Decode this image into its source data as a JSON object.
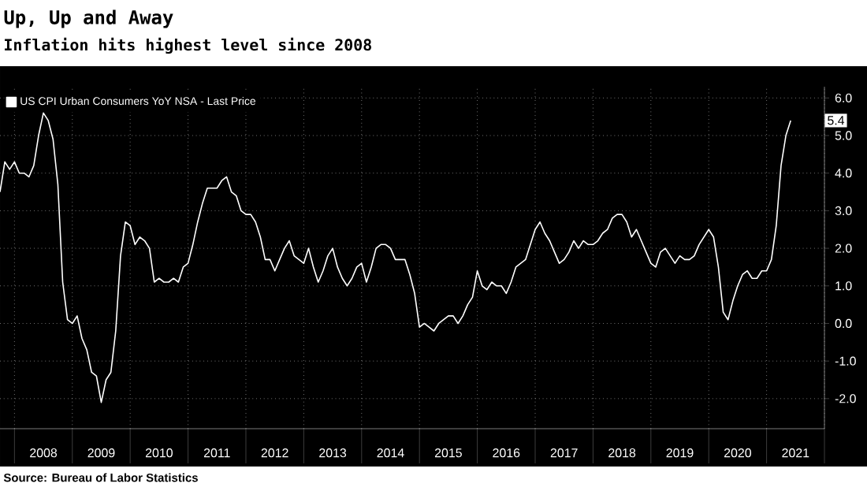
{
  "chart_data": {
    "type": "line",
    "title": "Up, Up and Away",
    "subtitle": "Inflation hits highest level since 2008",
    "x": [
      "2007-10",
      "2007-11",
      "2007-12",
      "2008-01",
      "2008-02",
      "2008-03",
      "2008-04",
      "2008-05",
      "2008-06",
      "2008-07",
      "2008-08",
      "2008-09",
      "2008-10",
      "2008-11",
      "2008-12",
      "2009-01",
      "2009-02",
      "2009-03",
      "2009-04",
      "2009-05",
      "2009-06",
      "2009-07",
      "2009-08",
      "2009-09",
      "2009-10",
      "2009-11",
      "2009-12",
      "2010-01",
      "2010-02",
      "2010-03",
      "2010-04",
      "2010-05",
      "2010-06",
      "2010-07",
      "2010-08",
      "2010-09",
      "2010-10",
      "2010-11",
      "2010-12",
      "2011-01",
      "2011-02",
      "2011-03",
      "2011-04",
      "2011-05",
      "2011-06",
      "2011-07",
      "2011-08",
      "2011-09",
      "2011-10",
      "2011-11",
      "2011-12",
      "2012-01",
      "2012-02",
      "2012-03",
      "2012-04",
      "2012-05",
      "2012-06",
      "2012-07",
      "2012-08",
      "2012-09",
      "2012-10",
      "2012-11",
      "2012-12",
      "2013-01",
      "2013-02",
      "2013-03",
      "2013-04",
      "2013-05",
      "2013-06",
      "2013-07",
      "2013-08",
      "2013-09",
      "2013-10",
      "2013-11",
      "2013-12",
      "2014-01",
      "2014-02",
      "2014-03",
      "2014-04",
      "2014-05",
      "2014-06",
      "2014-07",
      "2014-08",
      "2014-09",
      "2014-10",
      "2014-11",
      "2014-12",
      "2015-01",
      "2015-02",
      "2015-03",
      "2015-04",
      "2015-05",
      "2015-06",
      "2015-07",
      "2015-08",
      "2015-09",
      "2015-10",
      "2015-11",
      "2015-12",
      "2016-01",
      "2016-02",
      "2016-03",
      "2016-04",
      "2016-05",
      "2016-06",
      "2016-07",
      "2016-08",
      "2016-09",
      "2016-10",
      "2016-11",
      "2016-12",
      "2017-01",
      "2017-02",
      "2017-03",
      "2017-04",
      "2017-05",
      "2017-06",
      "2017-07",
      "2017-08",
      "2017-09",
      "2017-10",
      "2017-11",
      "2017-12",
      "2018-01",
      "2018-02",
      "2018-03",
      "2018-04",
      "2018-05",
      "2018-06",
      "2018-07",
      "2018-08",
      "2018-09",
      "2018-10",
      "2018-11",
      "2018-12",
      "2019-01",
      "2019-02",
      "2019-03",
      "2019-04",
      "2019-05",
      "2019-06",
      "2019-07",
      "2019-08",
      "2019-09",
      "2019-10",
      "2019-11",
      "2019-12",
      "2020-01",
      "2020-02",
      "2020-03",
      "2020-04",
      "2020-05",
      "2020-06",
      "2020-07",
      "2020-08",
      "2020-09",
      "2020-10",
      "2020-11",
      "2020-12",
      "2021-01",
      "2021-02",
      "2021-03",
      "2021-04",
      "2021-05",
      "2021-06"
    ],
    "series": [
      {
        "name": "US CPI Urban Consumers YoY NSA - Last Price",
        "color": "#ffffff",
        "values": [
          3.5,
          4.3,
          4.1,
          4.3,
          4.0,
          4.0,
          3.9,
          4.2,
          5.0,
          5.6,
          5.4,
          4.9,
          3.7,
          1.1,
          0.1,
          0.0,
          0.2,
          -0.4,
          -0.7,
          -1.3,
          -1.4,
          -2.1,
          -1.5,
          -1.3,
          -0.2,
          1.8,
          2.7,
          2.6,
          2.1,
          2.3,
          2.2,
          2.0,
          1.1,
          1.2,
          1.1,
          1.1,
          1.2,
          1.1,
          1.5,
          1.6,
          2.1,
          2.7,
          3.2,
          3.6,
          3.6,
          3.6,
          3.8,
          3.9,
          3.5,
          3.4,
          3.0,
          2.9,
          2.9,
          2.7,
          2.3,
          1.7,
          1.7,
          1.4,
          1.7,
          2.0,
          2.2,
          1.8,
          1.7,
          1.6,
          2.0,
          1.5,
          1.1,
          1.4,
          1.8,
          2.0,
          1.5,
          1.2,
          1.0,
          1.2,
          1.5,
          1.6,
          1.1,
          1.5,
          2.0,
          2.1,
          2.1,
          2.0,
          1.7,
          1.7,
          1.7,
          1.3,
          0.8,
          -0.1,
          0.0,
          -0.1,
          -0.2,
          0.0,
          0.1,
          0.2,
          0.2,
          0.0,
          0.2,
          0.5,
          0.7,
          1.4,
          1.0,
          0.9,
          1.1,
          1.0,
          1.0,
          0.8,
          1.1,
          1.5,
          1.6,
          1.7,
          2.1,
          2.5,
          2.7,
          2.4,
          2.2,
          1.9,
          1.6,
          1.7,
          1.9,
          2.2,
          2.0,
          2.2,
          2.1,
          2.1,
          2.2,
          2.4,
          2.5,
          2.8,
          2.9,
          2.9,
          2.7,
          2.3,
          2.5,
          2.2,
          1.9,
          1.6,
          1.5,
          1.9,
          2.0,
          1.8,
          1.6,
          1.8,
          1.7,
          1.7,
          1.8,
          2.1,
          2.3,
          2.5,
          2.3,
          1.5,
          0.3,
          0.1,
          0.6,
          1.0,
          1.3,
          1.4,
          1.2,
          1.2,
          1.4,
          1.4,
          1.7,
          2.6,
          4.2,
          5.0,
          5.4
        ]
      }
    ],
    "xlim": [
      "2007-10",
      "2022-01"
    ],
    "xticks": [
      {
        "value": "2008-01",
        "label": null
      },
      {
        "value": "2009-01",
        "label": null
      },
      {
        "value": "2010-01",
        "label": null
      },
      {
        "value": "2011-01",
        "label": null
      },
      {
        "value": "2012-01",
        "label": null
      },
      {
        "value": "2013-01",
        "label": null
      },
      {
        "value": "2014-01",
        "label": null
      },
      {
        "value": "2015-01",
        "label": null
      },
      {
        "value": "2016-01",
        "label": null
      },
      {
        "value": "2017-01",
        "label": null
      },
      {
        "value": "2018-01",
        "label": null
      },
      {
        "value": "2019-01",
        "label": null
      },
      {
        "value": "2020-01",
        "label": null
      },
      {
        "value": "2021-01",
        "label": null
      },
      {
        "value": "2022-01",
        "label": null
      },
      {
        "value": "2008-07",
        "label": "2008"
      },
      {
        "value": "2009-07",
        "label": "2009"
      },
      {
        "value": "2010-07",
        "label": "2010"
      },
      {
        "value": "2011-07",
        "label": "2011"
      },
      {
        "value": "2012-07",
        "label": "2012"
      },
      {
        "value": "2013-07",
        "label": "2013"
      },
      {
        "value": "2014-07",
        "label": "2014"
      },
      {
        "value": "2015-07",
        "label": "2015"
      },
      {
        "value": "2016-07",
        "label": "2016"
      },
      {
        "value": "2017-07",
        "label": "2017"
      },
      {
        "value": "2018-07",
        "label": "2018"
      },
      {
        "value": "2019-07",
        "label": "2019"
      },
      {
        "value": "2020-07",
        "label": "2020"
      },
      {
        "value": "2021-07",
        "label": "2021"
      }
    ],
    "ylim": [
      -2.8,
      6.3
    ],
    "yticks": [
      {
        "value": -2,
        "label": "-2.0"
      },
      {
        "value": -1,
        "label": "-1.0"
      },
      {
        "value": 0,
        "label": "0.0"
      },
      {
        "value": 1,
        "label": "1.0"
      },
      {
        "value": 2,
        "label": "2.0"
      },
      {
        "value": 3,
        "label": "3.0"
      },
      {
        "value": 4,
        "label": "4.0"
      },
      {
        "value": 5,
        "label": "5.0"
      },
      {
        "value": 6,
        "label": "6.0"
      }
    ],
    "grid": true,
    "legend": "top left",
    "annotations": [
      {
        "text": "5.4",
        "x": "2021-06",
        "y": 5.4
      },
      "Source: Bureau of Labor Statistics"
    ]
  }
}
